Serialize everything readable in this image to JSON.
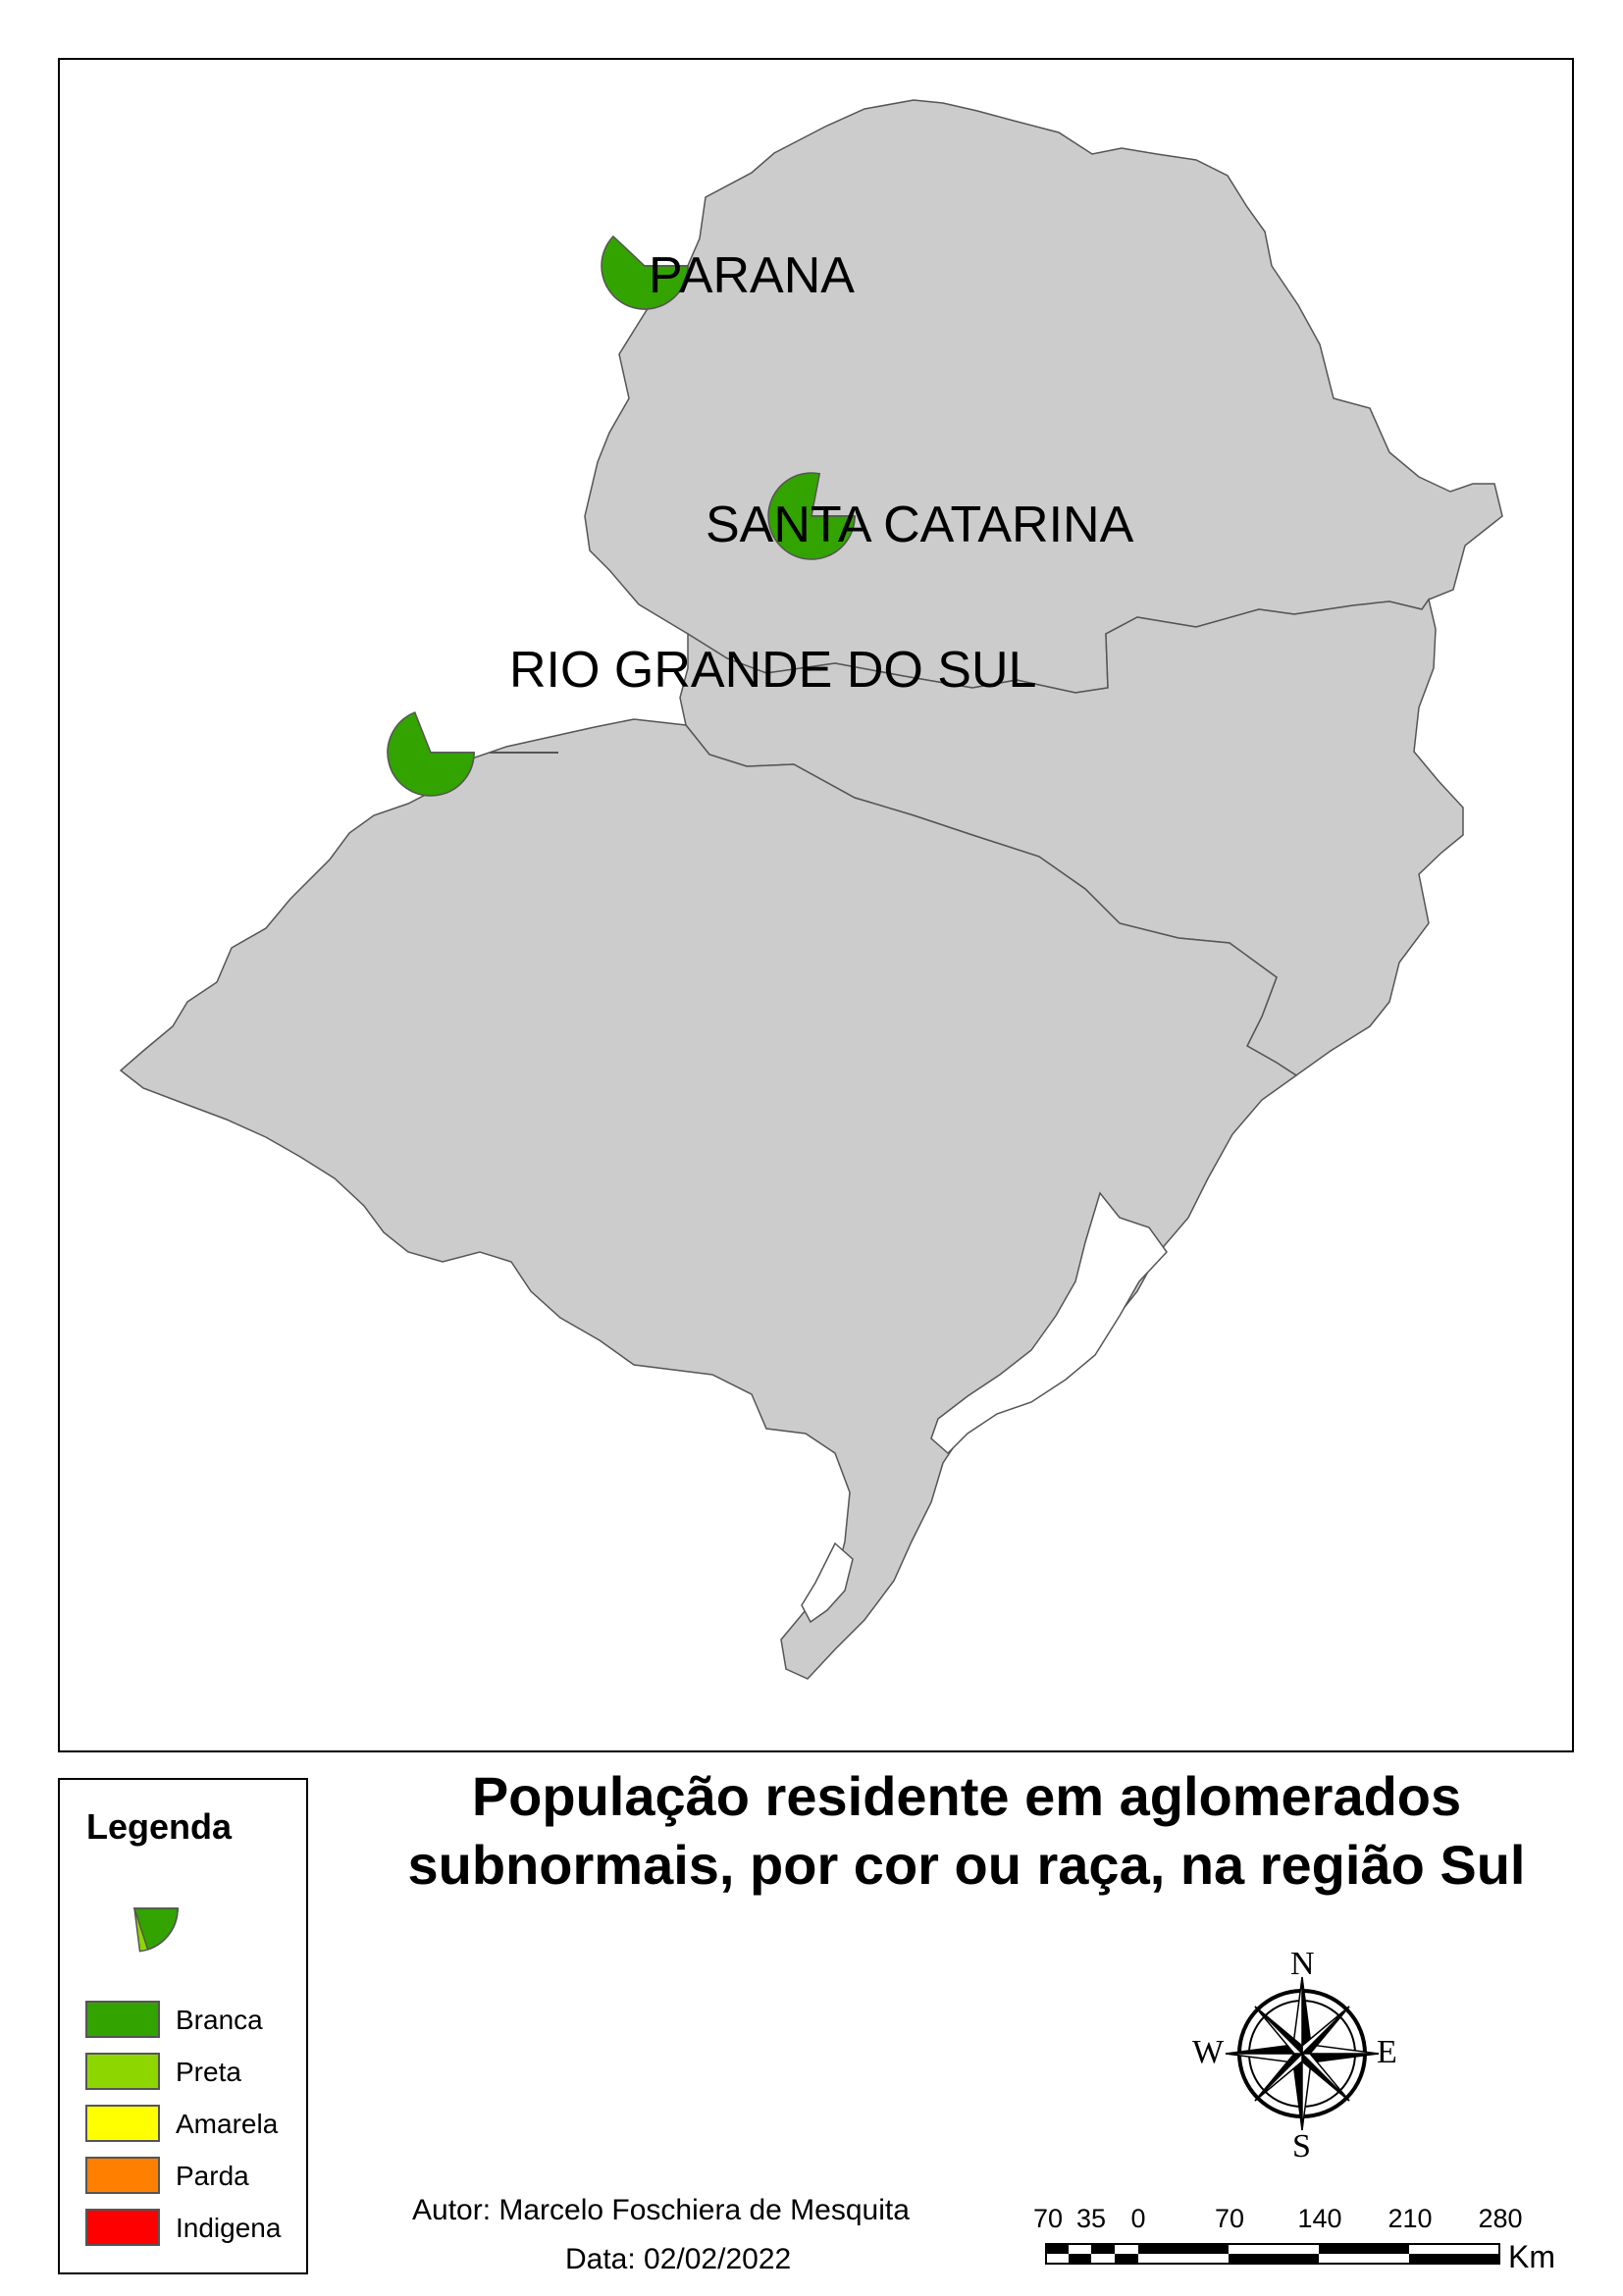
{
  "map": {
    "states": [
      {
        "name": "PARANA",
        "id": "parana"
      },
      {
        "name": "SANTA CATARINA",
        "id": "santa-catarina"
      },
      {
        "name": "RIO GRANDE DO SUL",
        "id": "rio-grande-do-sul"
      }
    ],
    "colors": {
      "land": "#cccccc",
      "border": "#555555",
      "Branca": "#33a300",
      "Preta": "#8ed600",
      "Amarela": "#ffff00",
      "Parda": "#ff7f00",
      "Indigena": "#ff0000"
    }
  },
  "legend": {
    "title": "Legenda",
    "items": [
      {
        "label": "Branca",
        "color": "#33a300"
      },
      {
        "label": "Preta",
        "color": "#8ed600"
      },
      {
        "label": "Amarela",
        "color": "#ffff00"
      },
      {
        "label": "Parda",
        "color": "#ff7f00"
      },
      {
        "label": "Indigena",
        "color": "#ff0000"
      }
    ]
  },
  "title": {
    "line1": "População residente em aglomerados",
    "line2": "subnormais, por cor ou raça, na região Sul"
  },
  "credits": {
    "author": "Autor: Marcelo Foschiera de Mesquita",
    "date": "Data: 02/02/2022"
  },
  "compass": {
    "n": "N",
    "s": "S",
    "e": "E",
    "w": "W"
  },
  "scale": {
    "labels": [
      "70",
      "35",
      "0",
      "70",
      "140",
      "210",
      "280"
    ],
    "unit": "Km"
  }
}
